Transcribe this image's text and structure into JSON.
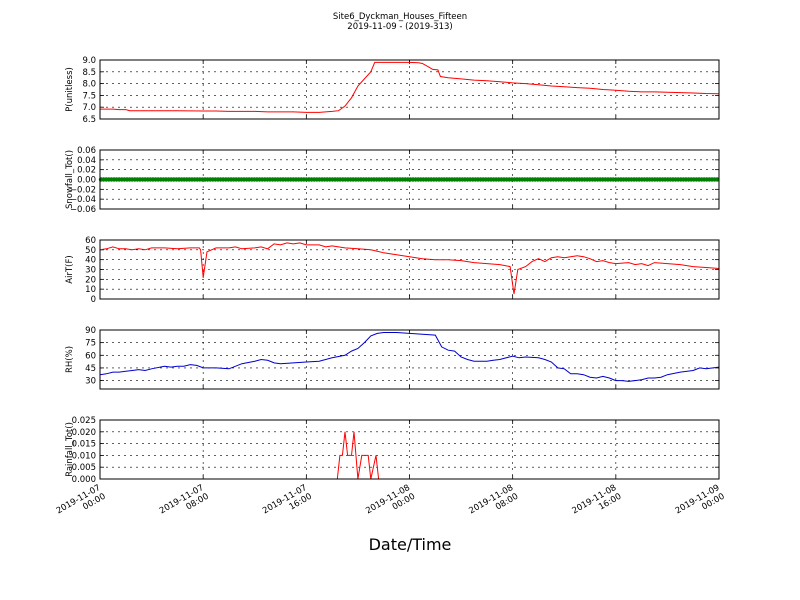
{
  "chart_data": {
    "title": "Site6_Dyckman_Houses_Fifteen",
    "subtitle": "2019-11-09 - (2019-313)",
    "xlabel": "Date/Time",
    "xlim_hours": [
      0,
      48
    ],
    "x_ticks": [
      {
        "hour": 0,
        "label": [
          "2019-11-07",
          "00:00"
        ]
      },
      {
        "hour": 8,
        "label": [
          "2019-11-07",
          "08:00"
        ]
      },
      {
        "hour": 16,
        "label": [
          "2019-11-07",
          "16:00"
        ]
      },
      {
        "hour": 24,
        "label": [
          "2019-11-08",
          "00:00"
        ]
      },
      {
        "hour": 32,
        "label": [
          "2019-11-08",
          "08:00"
        ]
      },
      {
        "hour": 40,
        "label": [
          "2019-11-08",
          "16:00"
        ]
      },
      {
        "hour": 48,
        "label": [
          "2019-11-09",
          "00:00"
        ]
      }
    ],
    "grid": true,
    "panels": [
      {
        "type": "line",
        "ylabel": "P(unitless)",
        "ylim": [
          6.5,
          9.0
        ],
        "yticks": [
          "6.5",
          "7.0",
          "7.5",
          "8.0",
          "8.5",
          "9.0"
        ],
        "yticks_values": [
          6.5,
          7.0,
          7.5,
          8.0,
          8.5,
          9.0
        ],
        "color": "#ff0000",
        "points": [
          [
            0,
            6.92
          ],
          [
            1,
            6.92
          ],
          [
            1.5,
            6.9
          ],
          [
            2,
            6.9
          ],
          [
            2.3,
            6.85
          ],
          [
            4,
            6.85
          ],
          [
            6,
            6.85
          ],
          [
            8,
            6.84
          ],
          [
            9,
            6.84
          ],
          [
            10,
            6.82
          ],
          [
            12,
            6.82
          ],
          [
            13,
            6.8
          ],
          [
            15,
            6.8
          ],
          [
            16,
            6.78
          ],
          [
            17,
            6.78
          ],
          [
            18,
            6.82
          ],
          [
            18.5,
            6.85
          ],
          [
            19,
            7.05
          ],
          [
            19.5,
            7.4
          ],
          [
            20,
            7.9
          ],
          [
            20.5,
            8.2
          ],
          [
            21,
            8.5
          ],
          [
            21.3,
            8.9
          ],
          [
            22,
            8.9
          ],
          [
            23,
            8.9
          ],
          [
            24,
            8.9
          ],
          [
            24.7,
            8.88
          ],
          [
            25,
            8.85
          ],
          [
            25.5,
            8.7
          ],
          [
            25.8,
            8.6
          ],
          [
            26.2,
            8.58
          ],
          [
            26.4,
            8.3
          ],
          [
            27,
            8.25
          ],
          [
            28,
            8.2
          ],
          [
            29,
            8.15
          ],
          [
            30,
            8.12
          ],
          [
            31,
            8.08
          ],
          [
            32,
            8.03
          ],
          [
            33,
            8.0
          ],
          [
            34,
            7.95
          ],
          [
            35,
            7.9
          ],
          [
            36,
            7.87
          ],
          [
            37,
            7.83
          ],
          [
            38,
            7.8
          ],
          [
            39,
            7.75
          ],
          [
            40,
            7.72
          ],
          [
            41,
            7.68
          ],
          [
            42,
            7.65
          ],
          [
            43,
            7.65
          ],
          [
            44,
            7.63
          ],
          [
            45,
            7.62
          ],
          [
            46,
            7.6
          ],
          [
            47,
            7.58
          ],
          [
            48,
            7.57
          ]
        ]
      },
      {
        "type": "line",
        "ylabel": "Snowfall_Tot()",
        "ylim": [
          -0.06,
          0.06
        ],
        "yticks": [
          "−0.06",
          "−0.04",
          "−0.02",
          "0.00",
          "0.02",
          "0.04",
          "0.06"
        ],
        "yticks_values": [
          -0.06,
          -0.04,
          -0.02,
          0.0,
          0.02,
          0.04,
          0.06
        ],
        "color": "#008000",
        "markers": true,
        "points": [
          [
            0,
            0.0
          ],
          [
            48,
            0.0
          ]
        ]
      },
      {
        "type": "line",
        "ylabel": "AirT(F)",
        "ylim": [
          0,
          60
        ],
        "yticks": [
          "0",
          "10",
          "20",
          "30",
          "40",
          "50",
          "60"
        ],
        "yticks_values": [
          0,
          10,
          20,
          30,
          40,
          50,
          60
        ],
        "color": "#ff0000",
        "points": [
          [
            0,
            50
          ],
          [
            0.5,
            51
          ],
          [
            1,
            53
          ],
          [
            1.5,
            51
          ],
          [
            2,
            51
          ],
          [
            2.5,
            50
          ],
          [
            3,
            51
          ],
          [
            3.5,
            50
          ],
          [
            4,
            52
          ],
          [
            5,
            52
          ],
          [
            6,
            51
          ],
          [
            7,
            52
          ],
          [
            7.7,
            52
          ],
          [
            7.8,
            50
          ],
          [
            8,
            22
          ],
          [
            8.3,
            48
          ],
          [
            9,
            52
          ],
          [
            10,
            52
          ],
          [
            10.5,
            53
          ],
          [
            11,
            51
          ],
          [
            12,
            52
          ],
          [
            12.5,
            53
          ],
          [
            13,
            51
          ],
          [
            13.5,
            56
          ],
          [
            14,
            55
          ],
          [
            14.5,
            57
          ],
          [
            15,
            56
          ],
          [
            15.5,
            57
          ],
          [
            16,
            55
          ],
          [
            17,
            55
          ],
          [
            17.5,
            53
          ],
          [
            18,
            54
          ],
          [
            19,
            52
          ],
          [
            20,
            51
          ],
          [
            21,
            50
          ],
          [
            22,
            47
          ],
          [
            23,
            45
          ],
          [
            24,
            43
          ],
          [
            25,
            41
          ],
          [
            26,
            40
          ],
          [
            27,
            40
          ],
          [
            28,
            39
          ],
          [
            29,
            37
          ],
          [
            30,
            36
          ],
          [
            31,
            35
          ],
          [
            31.8,
            33
          ],
          [
            32.1,
            5
          ],
          [
            32.4,
            30
          ],
          [
            33,
            33
          ],
          [
            33.5,
            38
          ],
          [
            34,
            41
          ],
          [
            34.5,
            38
          ],
          [
            35,
            42
          ],
          [
            35.5,
            43
          ],
          [
            36,
            42
          ],
          [
            36.5,
            43
          ],
          [
            37,
            44
          ],
          [
            37.5,
            43
          ],
          [
            38,
            41
          ],
          [
            38.5,
            38
          ],
          [
            39,
            39
          ],
          [
            39.5,
            37
          ],
          [
            40,
            36
          ],
          [
            41,
            37
          ],
          [
            41.5,
            35
          ],
          [
            42,
            36
          ],
          [
            42.5,
            34
          ],
          [
            43,
            37
          ],
          [
            44,
            36
          ],
          [
            45,
            35
          ],
          [
            46,
            33
          ],
          [
            47,
            32
          ],
          [
            48,
            31
          ]
        ]
      },
      {
        "type": "line",
        "ylabel": "RH(%)",
        "ylim": [
          20,
          90
        ],
        "yticks": [
          "30",
          "45",
          "60",
          "75",
          "90"
        ],
        "yticks_values": [
          30,
          45,
          60,
          75,
          90
        ],
        "color": "#0000cd",
        "points": [
          [
            0,
            37
          ],
          [
            0.5,
            38
          ],
          [
            1,
            40
          ],
          [
            1.5,
            40
          ],
          [
            2,
            41
          ],
          [
            2.5,
            42
          ],
          [
            3,
            43
          ],
          [
            3.5,
            42
          ],
          [
            4,
            44
          ],
          [
            5,
            47
          ],
          [
            5.5,
            46
          ],
          [
            6,
            47
          ],
          [
            6.5,
            47
          ],
          [
            7,
            49
          ],
          [
            7.5,
            48
          ],
          [
            8,
            45
          ],
          [
            9,
            45
          ],
          [
            10,
            44
          ],
          [
            11,
            50
          ],
          [
            12,
            53
          ],
          [
            12.5,
            55
          ],
          [
            13,
            54
          ],
          [
            13.5,
            51
          ],
          [
            14,
            50
          ],
          [
            15,
            51
          ],
          [
            16,
            52
          ],
          [
            17,
            53
          ],
          [
            18,
            57
          ],
          [
            19,
            60
          ],
          [
            19.5,
            65
          ],
          [
            20,
            68
          ],
          [
            20.5,
            75
          ],
          [
            21,
            83
          ],
          [
            21.5,
            86
          ],
          [
            22,
            87
          ],
          [
            23,
            87
          ],
          [
            24,
            86
          ],
          [
            25,
            85
          ],
          [
            26,
            84
          ],
          [
            26.5,
            70
          ],
          [
            27,
            66
          ],
          [
            27.5,
            65
          ],
          [
            28,
            58
          ],
          [
            28.5,
            55
          ],
          [
            29,
            53
          ],
          [
            30,
            53
          ],
          [
            30.5,
            54
          ],
          [
            31,
            55
          ],
          [
            32,
            59
          ],
          [
            32.5,
            57
          ],
          [
            33,
            58
          ],
          [
            34,
            57
          ],
          [
            34.5,
            55
          ],
          [
            35,
            52
          ],
          [
            35.5,
            45
          ],
          [
            36,
            44
          ],
          [
            36.5,
            38
          ],
          [
            37,
            38
          ],
          [
            37.5,
            37
          ],
          [
            38,
            34
          ],
          [
            38.5,
            33
          ],
          [
            39,
            35
          ],
          [
            39.5,
            33
          ],
          [
            40,
            30
          ],
          [
            40.5,
            30
          ],
          [
            41,
            29
          ],
          [
            42,
            31
          ],
          [
            42.5,
            33
          ],
          [
            43,
            33
          ],
          [
            43.5,
            34
          ],
          [
            44,
            37
          ],
          [
            45,
            40
          ],
          [
            46,
            42
          ],
          [
            46.5,
            45
          ],
          [
            47,
            44
          ],
          [
            48,
            46
          ]
        ]
      },
      {
        "type": "line",
        "ylabel": "Rainfall_Tot()",
        "ylim": [
          0.0,
          0.025
        ],
        "yticks": [
          "0.000",
          "0.005",
          "0.010",
          "0.015",
          "0.020",
          "0.025"
        ],
        "yticks_values": [
          0.0,
          0.005,
          0.01,
          0.015,
          0.02,
          0.025
        ],
        "color": "#ff0000",
        "points": [
          [
            0,
            0
          ],
          [
            18.4,
            0
          ],
          [
            18.6,
            0.01
          ],
          [
            18.8,
            0.01
          ],
          [
            19,
            0.02
          ],
          [
            19.2,
            0.01
          ],
          [
            19.5,
            0.01
          ],
          [
            19.7,
            0.02
          ],
          [
            20,
            0.0
          ],
          [
            20.3,
            0.01
          ],
          [
            20.8,
            0.01
          ],
          [
            21,
            0.0
          ],
          [
            21.4,
            0.01
          ],
          [
            21.6,
            0.0
          ],
          [
            22,
            0
          ],
          [
            48,
            0
          ]
        ]
      }
    ]
  }
}
